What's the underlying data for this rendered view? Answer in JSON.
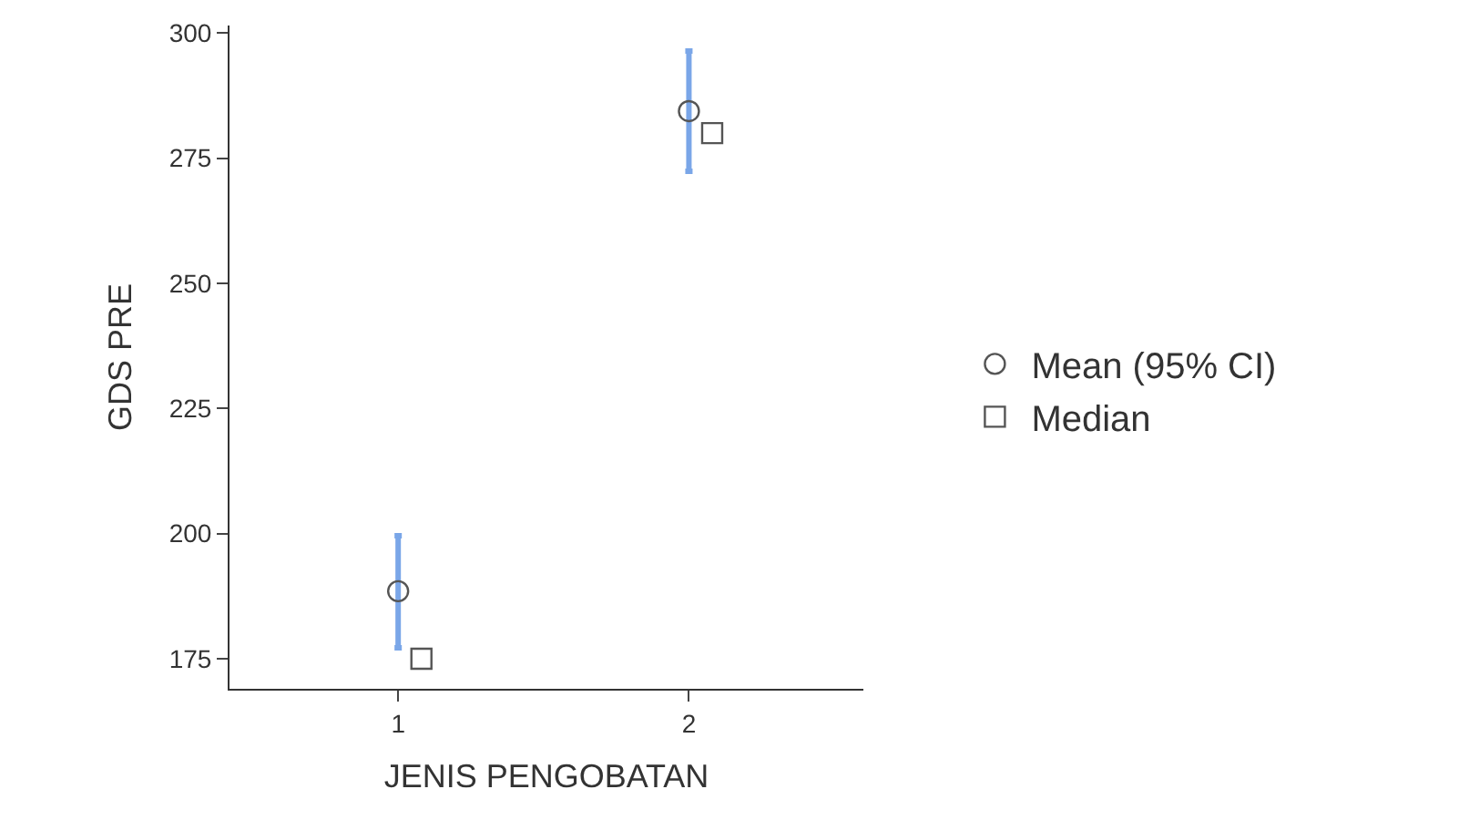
{
  "chart_data": {
    "type": "scatter",
    "xlabel": "JENIS PENGOBATAN",
    "ylabel": "GDS PRE",
    "categories": [
      "1",
      "2"
    ],
    "series": [
      {
        "name": "Mean (95% CI)",
        "color": "#555555",
        "marker": "circle",
        "values": [
          188.5,
          284.4
        ],
        "errors": [
          [
            177.2,
            199.6
          ],
          [
            272.4,
            296.4
          ]
        ]
      },
      {
        "name": "Median",
        "color": "#555555",
        "marker": "square",
        "values": [
          175,
          280
        ]
      }
    ],
    "ylim": [
      169,
      301.5
    ],
    "yticks": [
      175,
      200,
      225,
      250,
      275,
      300
    ],
    "legend": "right"
  }
}
